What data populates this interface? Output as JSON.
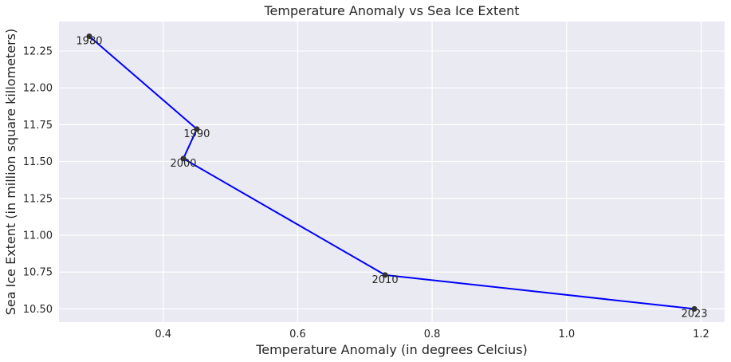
{
  "chart_data": {
    "type": "line",
    "title": "Temperature Anomaly vs Sea Ice Extent",
    "xlabel": "Temperature Anomaly (in degrees Celcius)",
    "ylabel": "Sea Ice Extent (in million square killometers)",
    "xlim": [
      0.245,
      1.235
    ],
    "ylim": [
      10.41,
      12.45
    ],
    "xticks": [
      0.4,
      0.6,
      0.8,
      1.0,
      1.2
    ],
    "xtick_labels": [
      "0.4",
      "0.6",
      "0.8",
      "1.0",
      "1.2"
    ],
    "yticks": [
      10.5,
      10.75,
      11.0,
      11.25,
      11.5,
      11.75,
      12.0,
      12.25
    ],
    "ytick_labels": [
      "10.50",
      "10.75",
      "11.00",
      "11.25",
      "11.50",
      "11.75",
      "12.00",
      "12.25"
    ],
    "grid": true,
    "points": [
      {
        "label": "1980",
        "x": 0.29,
        "y": 12.35
      },
      {
        "label": "1990",
        "x": 0.45,
        "y": 11.72
      },
      {
        "label": "2000",
        "x": 0.43,
        "y": 11.52
      },
      {
        "label": "2010",
        "x": 0.73,
        "y": 10.73
      },
      {
        "label": "2023",
        "x": 1.19,
        "y": 10.5
      }
    ],
    "line_color": "#0000ff",
    "marker_color": "#333333",
    "background_color": "#eaeaf2",
    "grid_color": "#ffffff"
  }
}
